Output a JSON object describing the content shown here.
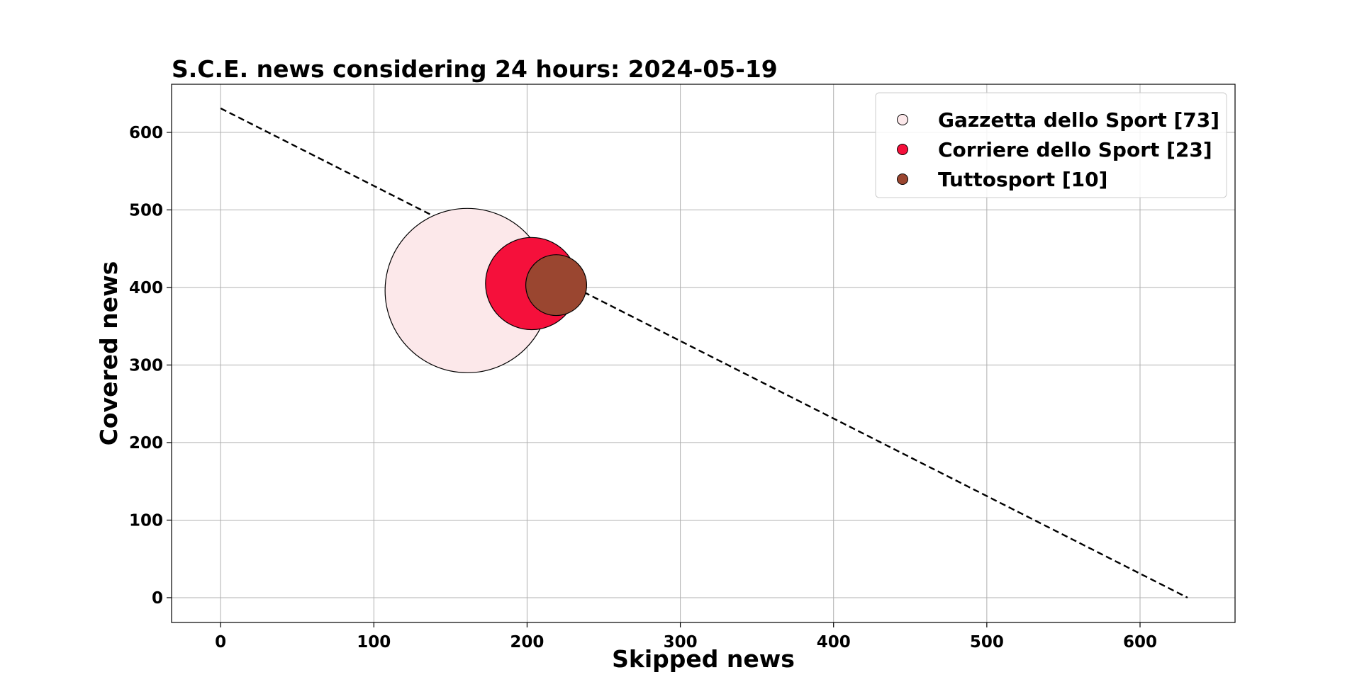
{
  "chart_data": {
    "type": "scatter",
    "title": "S.C.E. news considering 24 hours: 2024-05-19",
    "xlabel": "Skipped news",
    "ylabel": "Covered news",
    "xlim": [
      -32,
      662
    ],
    "ylim": [
      -32,
      662
    ],
    "x_ticks": [
      0,
      100,
      200,
      300,
      400,
      500,
      600
    ],
    "y_ticks": [
      0,
      100,
      200,
      300,
      400,
      500,
      600
    ],
    "grid": true,
    "legend_position": "top-right",
    "reference_line": {
      "style": "dashed",
      "color": "#000000",
      "x": [
        0,
        631
      ],
      "y": [
        631,
        0
      ]
    },
    "series": [
      {
        "name": "Gazzetta dello Sport [73]",
        "color": "#fce8ea",
        "x": 161,
        "y": 396,
        "size": 73
      },
      {
        "name": "Corriere dello Sport [23]",
        "color": "#f5103b",
        "x": 203,
        "y": 405,
        "size": 23
      },
      {
        "name": "Tuttosport [10]",
        "color": "#9a4630",
        "x": 219,
        "y": 403,
        "size": 10
      }
    ]
  }
}
